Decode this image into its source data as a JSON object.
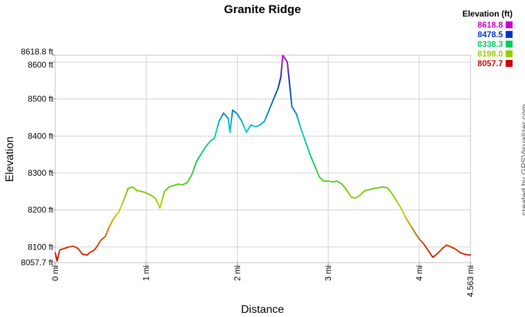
{
  "chart_data": {
    "type": "line",
    "title": "Granite Ridge",
    "xlabel": "Distance",
    "ylabel": "Elevation",
    "xlim": [
      0,
      4.563
    ],
    "ylim": [
      8057.7,
      8618.8
    ],
    "x_ticks": [
      {
        "value": 0,
        "label": "0 mi"
      },
      {
        "value": 1,
        "label": "1 mi"
      },
      {
        "value": 2,
        "label": "2 mi"
      },
      {
        "value": 3,
        "label": "3 mi"
      },
      {
        "value": 4,
        "label": "4 mi"
      },
      {
        "value": 4.563,
        "label": "4.563 mi"
      }
    ],
    "y_ticks": [
      {
        "value": 8057.7,
        "label": "8057.7 ft"
      },
      {
        "value": 8100,
        "label": "8100 ft"
      },
      {
        "value": 8200,
        "label": "8200 ft"
      },
      {
        "value": 8300,
        "label": "8300 ft"
      },
      {
        "value": 8400,
        "label": "8400 ft"
      },
      {
        "value": 8500,
        "label": "8500 ft"
      },
      {
        "value": 8600,
        "label": "8600 ft"
      },
      {
        "value": 8618.8,
        "label": "8618.8 ft"
      }
    ],
    "grid": true,
    "legend": {
      "title": "Elevation (ft)",
      "placement": "top-right",
      "entries": [
        {
          "label": "8618.8",
          "color": "#cc00cc"
        },
        {
          "label": "8478.5",
          "color": "#0033cc"
        },
        {
          "label": "8338.3",
          "color": "#00cc66"
        },
        {
          "label": "8198.0",
          "color": "#99cc00"
        },
        {
          "label": "8057.7",
          "color": "#cc0000"
        }
      ]
    },
    "series": [
      {
        "x": [
          0,
          0.02,
          0.05,
          0.1,
          0.15,
          0.2,
          0.25,
          0.3,
          0.35,
          0.38,
          0.42,
          0.45,
          0.5,
          0.55,
          0.6,
          0.65,
          0.7,
          0.75,
          0.8,
          0.85,
          0.9,
          0.95,
          1.0,
          1.05,
          1.1,
          1.15,
          1.2,
          1.25,
          1.3,
          1.35,
          1.4,
          1.45,
          1.5,
          1.55,
          1.6,
          1.65,
          1.7,
          1.75,
          1.8,
          1.85,
          1.9,
          1.92,
          1.95,
          2.0,
          2.05,
          2.1,
          2.15,
          2.2,
          2.25,
          2.3,
          2.35,
          2.4,
          2.45,
          2.48,
          2.5,
          2.52,
          2.55,
          2.58,
          2.6,
          2.65,
          2.7,
          2.75,
          2.8,
          2.85,
          2.9,
          2.95,
          3.0,
          3.05,
          3.1,
          3.15,
          3.2,
          3.25,
          3.3,
          3.35,
          3.4,
          3.45,
          3.5,
          3.55,
          3.6,
          3.65,
          3.7,
          3.75,
          3.8,
          3.85,
          3.9,
          3.95,
          4.0,
          4.05,
          4.1,
          4.15,
          4.2,
          4.25,
          4.3,
          4.35,
          4.4,
          4.45,
          4.5,
          4.563
        ],
        "y": [
          8085,
          8062,
          8092,
          8096,
          8100,
          8102,
          8096,
          8080,
          8078,
          8085,
          8090,
          8098,
          8118,
          8128,
          8158,
          8180,
          8195,
          8225,
          8258,
          8262,
          8252,
          8250,
          8246,
          8240,
          8232,
          8205,
          8250,
          8262,
          8266,
          8270,
          8268,
          8274,
          8295,
          8330,
          8350,
          8370,
          8385,
          8395,
          8440,
          8462,
          8448,
          8410,
          8470,
          8460,
          8440,
          8410,
          8430,
          8425,
          8430,
          8440,
          8470,
          8500,
          8530,
          8560,
          8618,
          8612,
          8600,
          8530,
          8480,
          8460,
          8420,
          8385,
          8350,
          8320,
          8290,
          8278,
          8278,
          8276,
          8278,
          8270,
          8255,
          8235,
          8232,
          8240,
          8252,
          8255,
          8258,
          8260,
          8262,
          8260,
          8245,
          8225,
          8205,
          8180,
          8160,
          8140,
          8122,
          8108,
          8090,
          8072,
          8082,
          8095,
          8105,
          8100,
          8094,
          8085,
          8080,
          8078
        ]
      }
    ]
  },
  "credit": "created by GPSVisualizer.com"
}
